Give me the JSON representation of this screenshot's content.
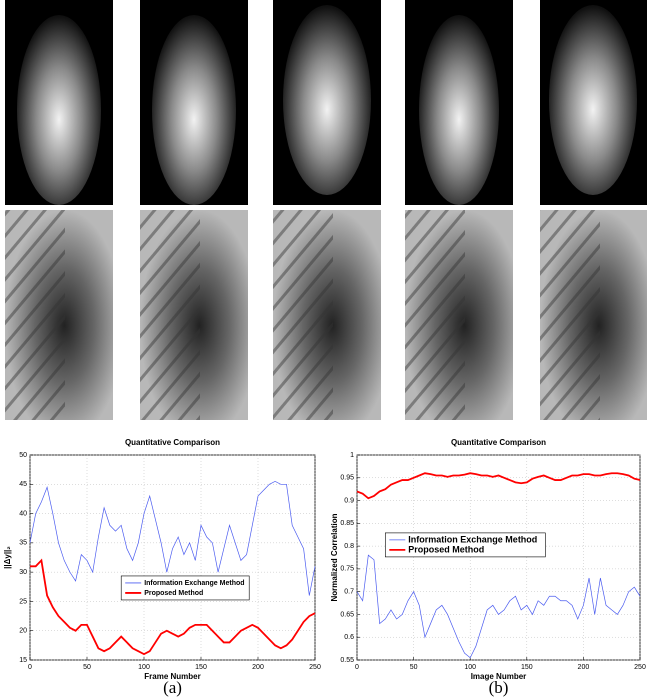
{
  "chart_data": [
    {
      "type": "line",
      "title": "Quantitative Comparison",
      "xlabel": "Frame Number",
      "ylabel": "||Δy||₂",
      "caption": "(a)",
      "x": [
        0,
        5,
        10,
        15,
        20,
        25,
        30,
        35,
        40,
        45,
        50,
        55,
        60,
        65,
        70,
        75,
        80,
        85,
        90,
        95,
        100,
        105,
        110,
        115,
        120,
        125,
        130,
        135,
        140,
        145,
        150,
        155,
        160,
        165,
        170,
        175,
        180,
        185,
        190,
        195,
        200,
        205,
        210,
        215,
        220,
        225,
        230,
        235,
        240,
        245,
        250
      ],
      "series": [
        {
          "name": "Information Exchange Method",
          "color": "#4b5cf0",
          "values": [
            35,
            40,
            42,
            44.5,
            40,
            35,
            32,
            30,
            28.5,
            33,
            32,
            30,
            36,
            41,
            38,
            37,
            38,
            34,
            32,
            35,
            40,
            43,
            39,
            35,
            30,
            34,
            36,
            33,
            35,
            32,
            38,
            36,
            35,
            30,
            34,
            38,
            35,
            32,
            33,
            38,
            43,
            44,
            45,
            45.5,
            45,
            45,
            38,
            36,
            34,
            26,
            31
          ]
        },
        {
          "name": "Proposed Method",
          "color": "#ff0000",
          "values": [
            31,
            31,
            32,
            26,
            24,
            22.5,
            21.5,
            20.5,
            20,
            21,
            21,
            19,
            17,
            16.5,
            17,
            18,
            19,
            18,
            17,
            16.5,
            16,
            16.5,
            18,
            19.5,
            20,
            19.5,
            19,
            19.5,
            20.5,
            21,
            21,
            21,
            20,
            19,
            18,
            18,
            19,
            20,
            20.5,
            21,
            20.5,
            19.5,
            18.5,
            17.5,
            17,
            17.5,
            18.5,
            20,
            21.5,
            22.5,
            23
          ]
        }
      ],
      "xlim": [
        0,
        250
      ],
      "ylim": [
        15,
        50
      ],
      "xticks": [
        0,
        50,
        100,
        150,
        200,
        250
      ],
      "yticks": [
        15,
        20,
        25,
        30,
        35,
        40,
        45,
        50
      ],
      "grid": true,
      "legend": "center"
    },
    {
      "type": "line",
      "title": "Quantitative Comparison",
      "xlabel": "Image Number",
      "ylabel": "Normalized Correlation",
      "caption": "(b)",
      "x": [
        0,
        5,
        10,
        15,
        20,
        25,
        30,
        35,
        40,
        45,
        50,
        55,
        60,
        65,
        70,
        75,
        80,
        85,
        90,
        95,
        100,
        105,
        110,
        115,
        120,
        125,
        130,
        135,
        140,
        145,
        150,
        155,
        160,
        165,
        170,
        175,
        180,
        185,
        190,
        195,
        200,
        205,
        210,
        215,
        220,
        225,
        230,
        235,
        240,
        245,
        250
      ],
      "series": [
        {
          "name": "Information Exchange Method",
          "color": "#4b5cf0",
          "values": [
            0.7,
            0.68,
            0.78,
            0.77,
            0.63,
            0.64,
            0.66,
            0.64,
            0.65,
            0.68,
            0.7,
            0.67,
            0.6,
            0.63,
            0.66,
            0.67,
            0.65,
            0.62,
            0.59,
            0.565,
            0.555,
            0.58,
            0.62,
            0.66,
            0.67,
            0.65,
            0.66,
            0.68,
            0.69,
            0.66,
            0.67,
            0.65,
            0.68,
            0.67,
            0.69,
            0.69,
            0.68,
            0.68,
            0.67,
            0.64,
            0.67,
            0.73,
            0.65,
            0.73,
            0.67,
            0.66,
            0.65,
            0.67,
            0.7,
            0.71,
            0.69
          ]
        },
        {
          "name": "Proposed Method",
          "color": "#ff0000",
          "values": [
            0.92,
            0.915,
            0.905,
            0.91,
            0.92,
            0.925,
            0.935,
            0.94,
            0.945,
            0.945,
            0.95,
            0.955,
            0.96,
            0.958,
            0.955,
            0.955,
            0.952,
            0.955,
            0.955,
            0.957,
            0.96,
            0.958,
            0.955,
            0.955,
            0.952,
            0.955,
            0.95,
            0.945,
            0.94,
            0.938,
            0.94,
            0.948,
            0.952,
            0.955,
            0.95,
            0.945,
            0.945,
            0.95,
            0.955,
            0.955,
            0.958,
            0.958,
            0.955,
            0.955,
            0.958,
            0.96,
            0.96,
            0.958,
            0.955,
            0.948,
            0.945
          ]
        }
      ],
      "xlim": [
        0,
        250
      ],
      "ylim": [
        0.55,
        1
      ],
      "xticks": [
        0,
        50,
        100,
        150,
        200,
        250
      ],
      "yticks": [
        0.55,
        0.6,
        0.65,
        0.7,
        0.75,
        0.8,
        0.85,
        0.9,
        0.95,
        1
      ],
      "grid": true,
      "legend": "center left"
    }
  ]
}
